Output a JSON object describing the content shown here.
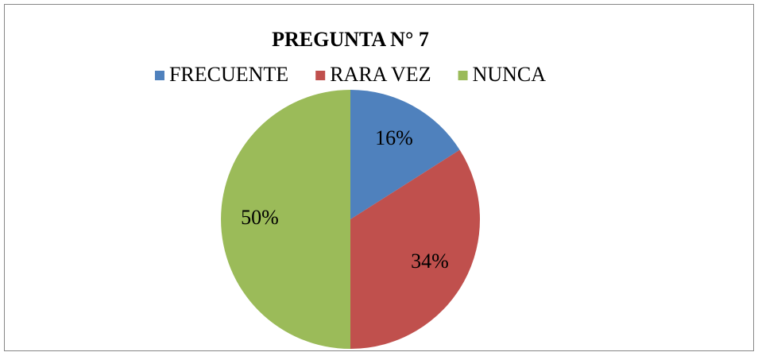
{
  "chart_data": {
    "type": "pie",
    "title": "PREGUNTA N° 7",
    "categories": [
      "FRECUENTE",
      "RARA VEZ",
      "NUNCA"
    ],
    "values": [
      16,
      34,
      50
    ],
    "value_labels": [
      "16%",
      "34%",
      "50%"
    ],
    "colors": [
      "#4f81bd",
      "#c0504d",
      "#9bbb59"
    ],
    "legend": "top"
  }
}
